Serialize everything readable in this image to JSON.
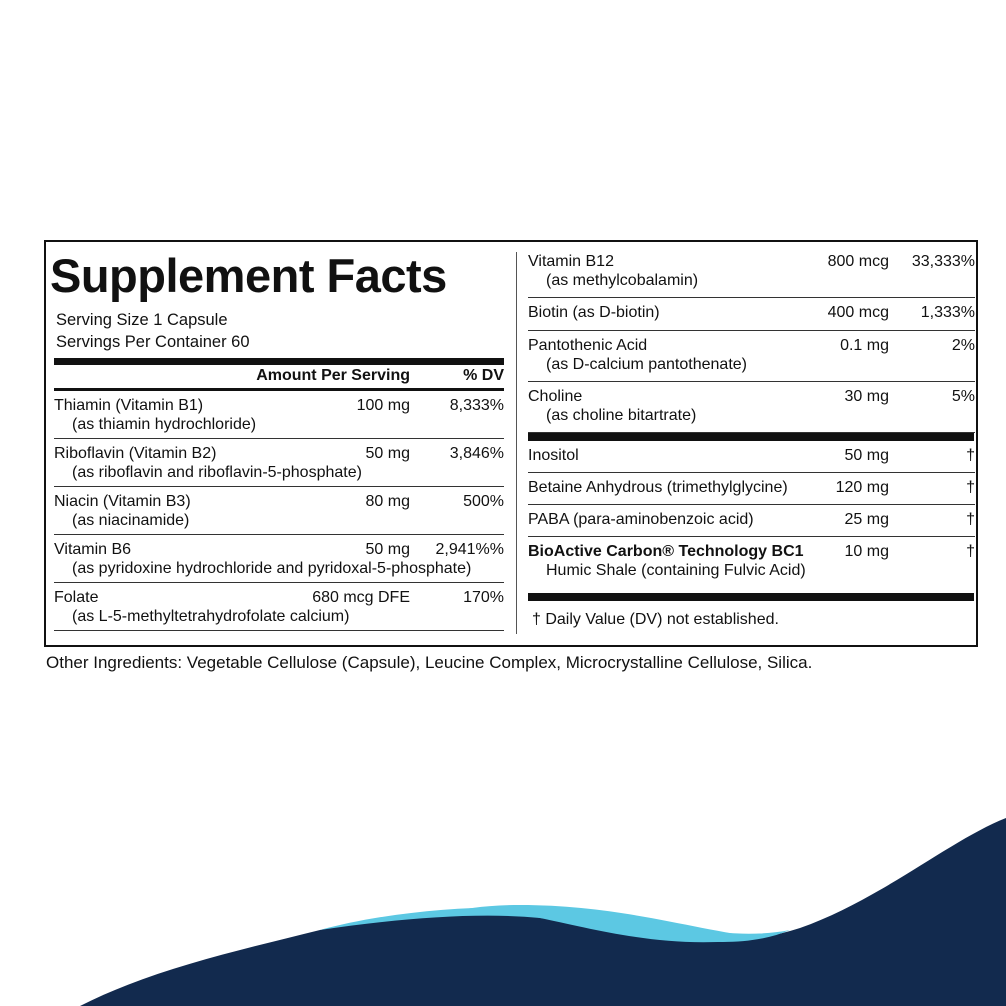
{
  "title": "Supplement Facts",
  "serving_size": "Serving Size 1 Capsule",
  "servings_per_container": "Servings Per Container 60",
  "header": {
    "amount": "Amount Per Serving",
    "dv": "% DV"
  },
  "left_rows": [
    {
      "name": "Thiamin (Vitamin B1)",
      "sub": "(as thiamin hydrochloride)",
      "amount": "100 mg",
      "dv": "8,333%"
    },
    {
      "name": "Riboflavin (Vitamin B2)",
      "sub": "(as riboflavin and riboflavin-5-phosphate)",
      "amount": "50 mg",
      "dv": "3,846%"
    },
    {
      "name": "Niacin (Vitamin B3)",
      "sub": "(as niacinamide)",
      "amount": "80 mg",
      "dv": "500%"
    },
    {
      "name": "Vitamin B6",
      "sub": "(as pyridoxine hydrochloride and pyridoxal-5-phosphate)",
      "amount": "50 mg",
      "dv": "2,941%%"
    },
    {
      "name": "Folate",
      "sub": "(as L-5-methyltetrahydrofolate calcium)",
      "amount": "680 mcg DFE",
      "dv": "170%"
    }
  ],
  "right_rows": [
    {
      "name": "Vitamin B12",
      "sub": "(as methylcobalamin)",
      "amount": "800 mcg",
      "dv": "33,333%"
    },
    {
      "name": "Biotin (as D-biotin)",
      "amount": "400 mcg",
      "dv": "1,333%"
    },
    {
      "name": "Pantothenic Acid",
      "sub": "(as D-calcium pantothenate)",
      "amount": "0.1 mg",
      "dv": "2%"
    },
    {
      "name": "Choline",
      "sub": "(as choline bitartrate)",
      "amount": "30 mg",
      "dv": "5%"
    }
  ],
  "right_rows_2": [
    {
      "name": "Inositol",
      "amount": "50 mg",
      "dv": "†"
    },
    {
      "name": "Betaine Anhydrous (trimethylglycine)",
      "amount": "120 mg",
      "dv": "†"
    },
    {
      "name": "PABA (para-aminobenzoic acid)",
      "amount": "25 mg",
      "dv": "†"
    },
    {
      "name": "BioActive Carbon® Technology BC1",
      "sub": "Humic Shale (containing Fulvic Acid)",
      "amount": "10 mg",
      "dv": "†"
    }
  ],
  "footnote": "† Daily Value (DV) not established.",
  "other_ingredients": "Other Ingredients: Vegetable Cellulose (Capsule), Leucine Complex, Microcrystalline Cellulose, Silica."
}
